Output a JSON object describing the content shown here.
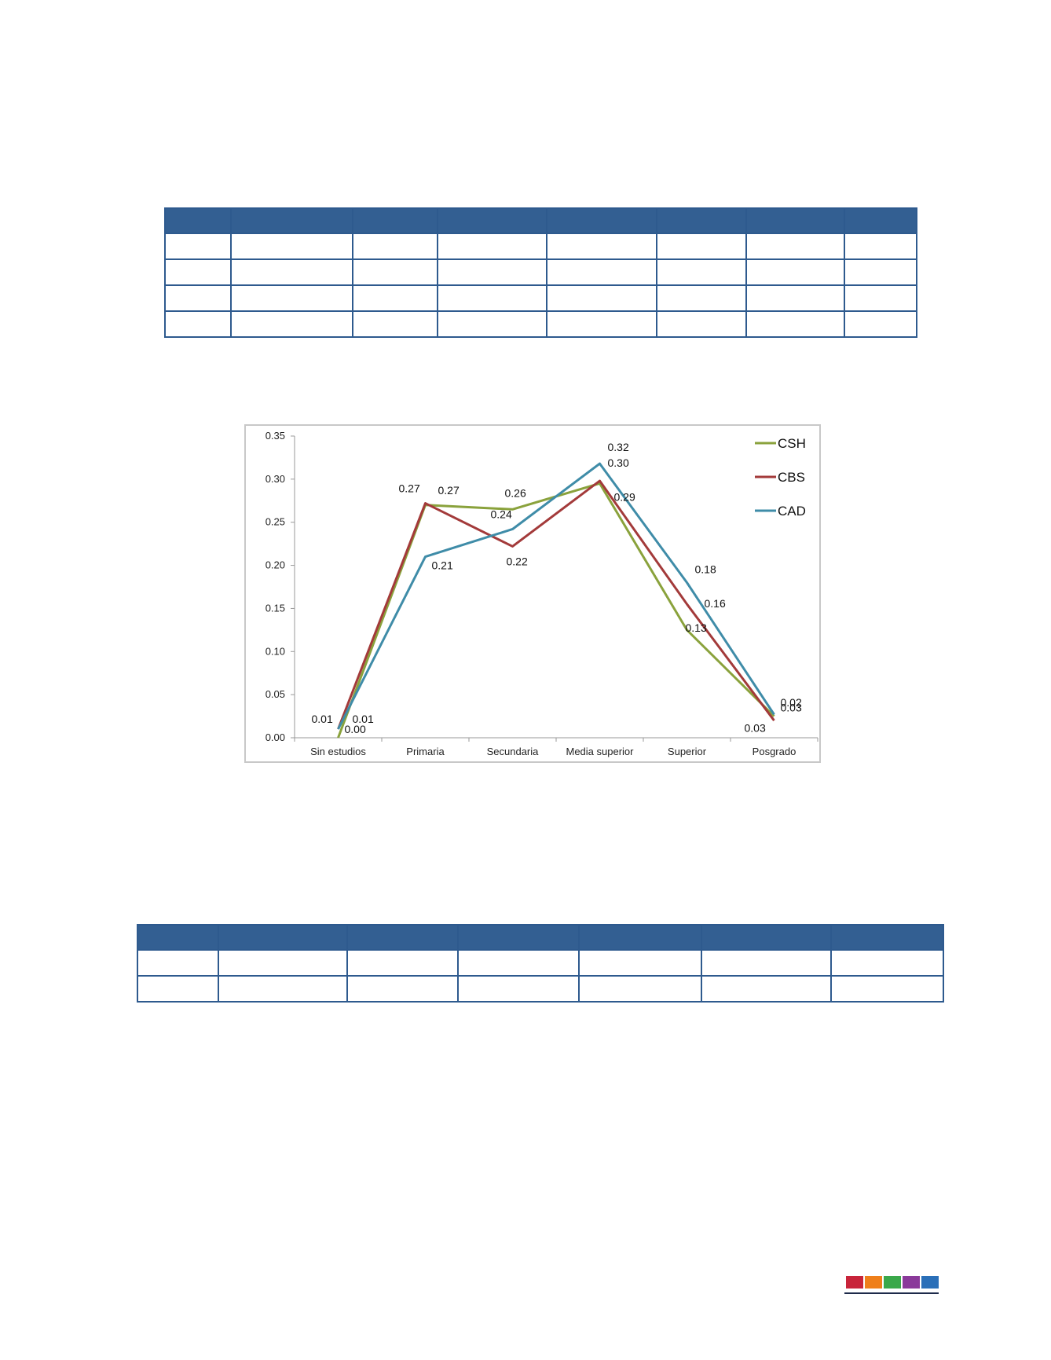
{
  "top_table": {
    "columns": 8,
    "rows": 4
  },
  "bottom_table": {
    "columns": 7,
    "rows": 2
  },
  "chart_data": {
    "type": "line",
    "categories": [
      "Sin estudios",
      "Primaria",
      "Secundaria",
      "Media superior",
      "Superior",
      "Posgrado"
    ],
    "ylim": [
      0,
      0.35
    ],
    "yticks": [
      "0.00",
      "0.05",
      "0.10",
      "0.15",
      "0.20",
      "0.25",
      "0.30",
      "0.35"
    ],
    "legend_position": "top-right",
    "grid": false,
    "series": [
      {
        "name": "CSH",
        "color": "#8aa23c",
        "values": [
          0.0,
          0.27,
          0.265,
          0.295,
          0.125,
          0.025
        ],
        "labels": [
          "0.00",
          "0.27",
          "0.26",
          "0.29",
          "0.13",
          "0.03"
        ]
      },
      {
        "name": "CBS",
        "color": "#a33a3a",
        "values": [
          0.01,
          0.272,
          0.222,
          0.298,
          0.155,
          0.02
        ],
        "labels": [
          "0.01",
          "0.27",
          "0.22",
          "0.30",
          "0.16",
          "0.02"
        ]
      },
      {
        "name": "CAD",
        "color": "#3f8ca8",
        "values": [
          0.01,
          0.21,
          0.242,
          0.318,
          0.18,
          0.027
        ],
        "labels": [
          "0.01",
          "0.21",
          "0.24",
          "0.32",
          "0.18",
          "0.03"
        ]
      }
    ]
  },
  "footer": {
    "colors": [
      "#c8243a",
      "#ef7f1a",
      "#3aa84a",
      "#8a3a9a",
      "#2a6fb8"
    ]
  }
}
